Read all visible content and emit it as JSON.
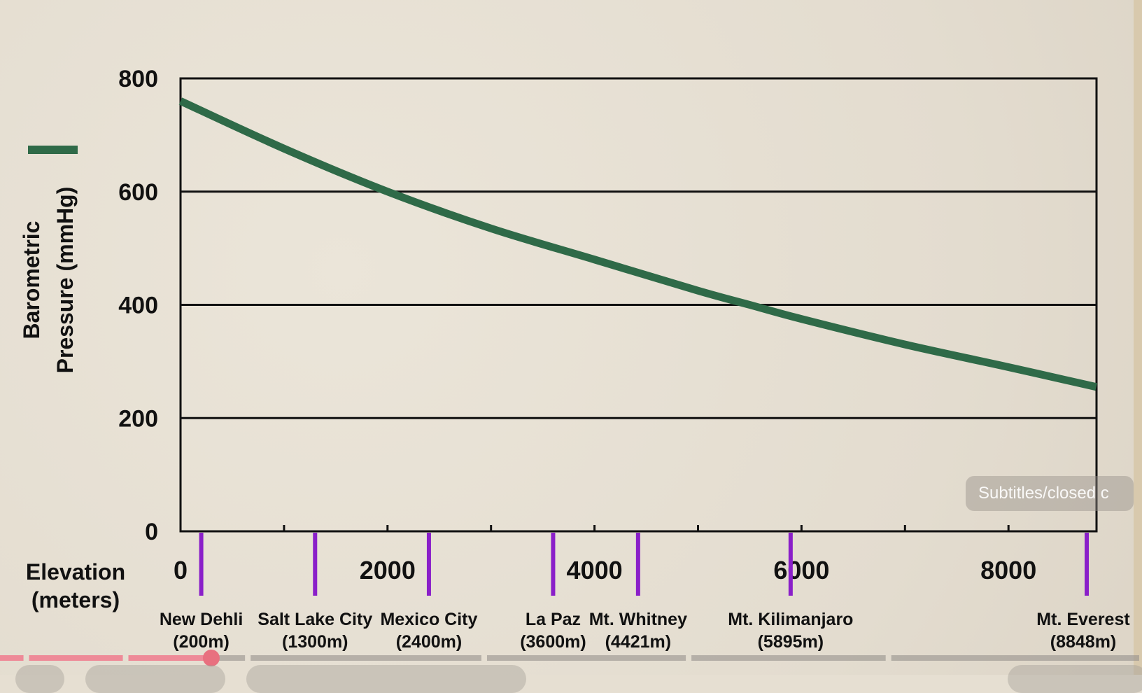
{
  "chart_data": {
    "type": "line",
    "title": "",
    "xlabel": "Elevation (meters)",
    "xlabel_lines": [
      "Elevation",
      "(meters)"
    ],
    "ylabel": "Barometric Pressure (mmHg)",
    "ylabel_lines": [
      "Barometric",
      "Pressure (mmHg)"
    ],
    "xlim": [
      0,
      8848
    ],
    "ylim": [
      0,
      800
    ],
    "x_ticks": [
      0,
      2000,
      4000,
      6000,
      8000
    ],
    "x_minor_ticks": [
      1000,
      2000,
      3000,
      4000,
      5000,
      6000,
      7000,
      8000
    ],
    "y_ticks": [
      0,
      200,
      400,
      600,
      800
    ],
    "grid": "horizontal",
    "series": [
      {
        "name": "Barometric Pressure",
        "color": "#2f6a48",
        "x": [
          0,
          1000,
          2000,
          3000,
          4000,
          5000,
          5500,
          6000,
          7000,
          8000,
          8848
        ],
        "y": [
          760,
          676,
          600,
          535,
          480,
          425,
          400,
          375,
          330,
          290,
          255
        ]
      }
    ],
    "annotations": [
      {
        "name": "New Dehli",
        "elevation_label": "(200m)",
        "x": 200
      },
      {
        "name": "Salt Lake City",
        "elevation_label": "(1300m)",
        "x": 1300
      },
      {
        "name": "Mexico City",
        "elevation_label": "(2400m)",
        "x": 2400
      },
      {
        "name": "La Paz",
        "elevation_label": "(3600m)",
        "x": 3600
      },
      {
        "name": "Mt. Whitney",
        "elevation_label": "(4421m)",
        "x": 4421
      },
      {
        "name": "Mt. Kilimanjaro",
        "elevation_label": "(5895m)",
        "x": 5895
      },
      {
        "name": "Mt. Everest",
        "elevation_label": "(8848m)",
        "x": 8848
      }
    ],
    "marker_color": "#8a1fc9"
  },
  "player": {
    "subtitles_tooltip": "Subtitles/closed c",
    "progress_fraction": 0.185,
    "played_color": "#ee8a98",
    "chapter_breaks": [
      0.023,
      0.11,
      0.217,
      0.424,
      0.603,
      0.778
    ]
  }
}
